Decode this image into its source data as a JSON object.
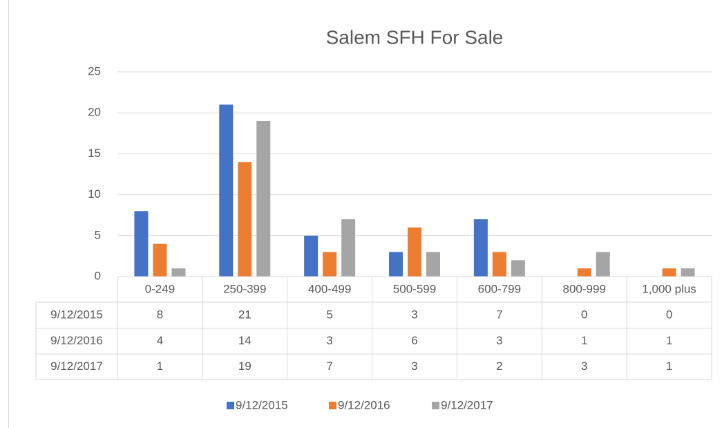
{
  "chart_data": {
    "type": "bar",
    "title": "Salem SFH For Sale",
    "categories": [
      "0-249",
      "250-399",
      "400-499",
      "500-599",
      "600-799",
      "800-999",
      "1,000 plus"
    ],
    "series": [
      {
        "name": "9/12/2015",
        "color": "#4472c4",
        "values": [
          8,
          21,
          5,
          3,
          7,
          0,
          0
        ]
      },
      {
        "name": "9/12/2016",
        "color": "#ed7d31",
        "values": [
          4,
          14,
          3,
          6,
          3,
          1,
          1
        ]
      },
      {
        "name": "9/12/2017",
        "color": "#a5a5a5",
        "values": [
          1,
          19,
          7,
          3,
          2,
          3,
          1
        ]
      }
    ],
    "ylim": [
      0,
      25
    ],
    "yticks": [
      0,
      5,
      10,
      15,
      20,
      25
    ],
    "grid": true,
    "legend": "bottom",
    "data_table": true
  }
}
